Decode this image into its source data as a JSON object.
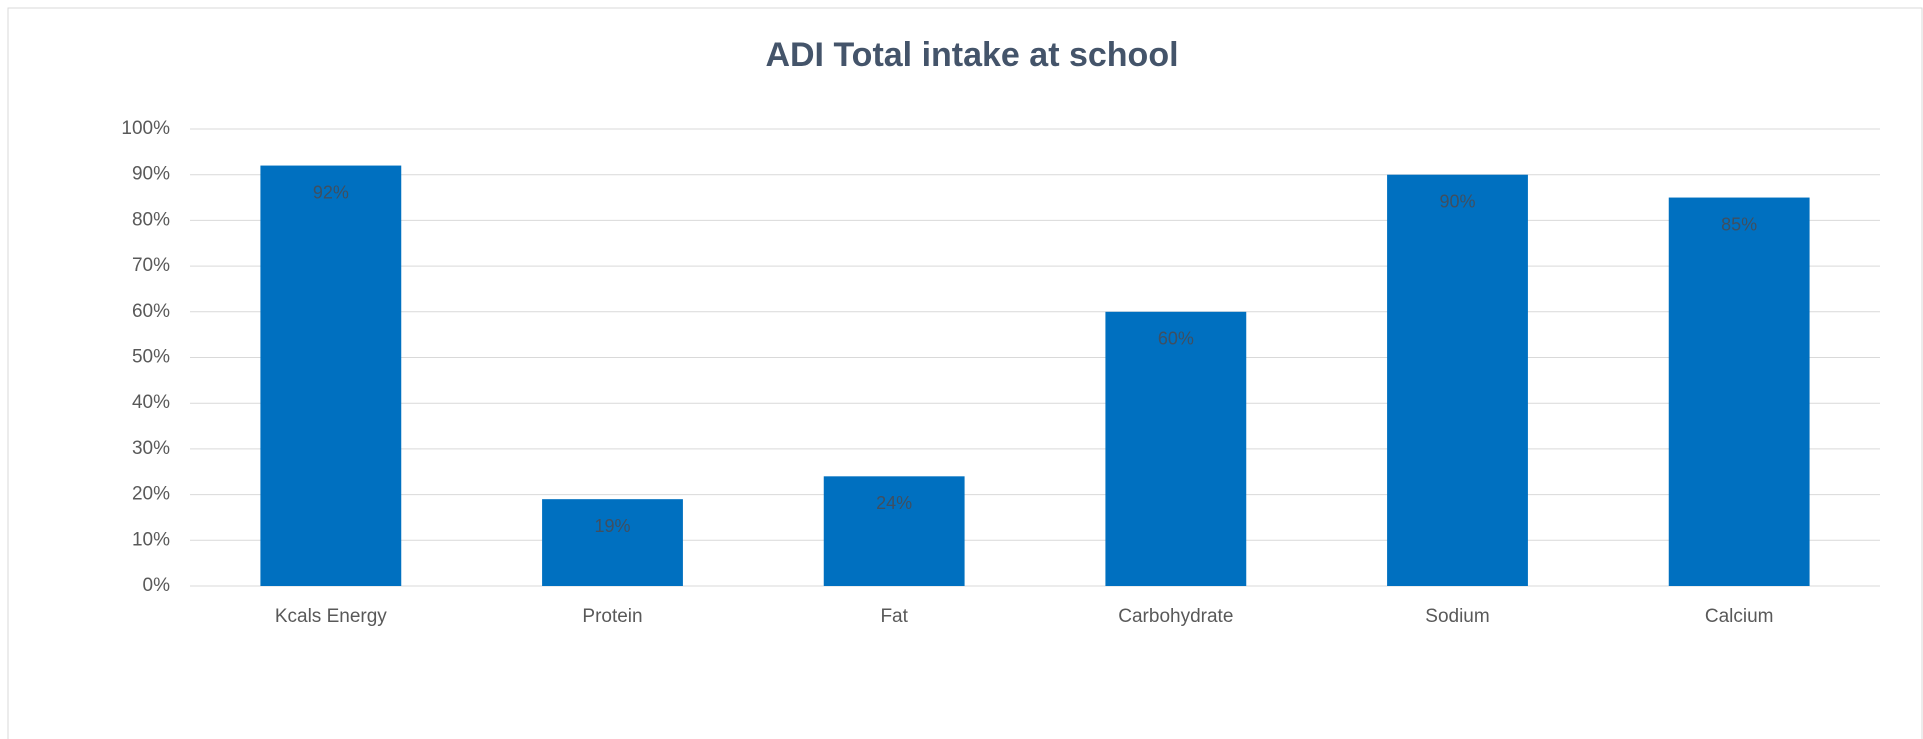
{
  "chart_data": {
    "type": "bar",
    "title": "ADI Total intake at school",
    "categories": [
      "Kcals Energy",
      "Protein",
      "Fat",
      "Carbohydrate",
      "Sodium",
      "Calcium"
    ],
    "values": [
      92,
      19,
      24,
      60,
      90,
      85
    ],
    "value_labels": [
      "92%",
      "19%",
      "24%",
      "60%",
      "90%",
      "85%"
    ],
    "color": "#0070c0",
    "ylim": [
      0,
      100
    ],
    "yticks": [
      {
        "value": 0,
        "label": "0%"
      },
      {
        "value": 10,
        "label": "10%"
      },
      {
        "value": 20,
        "label": "20%"
      },
      {
        "value": 30,
        "label": "30%"
      },
      {
        "value": 40,
        "label": "40%"
      },
      {
        "value": 50,
        "label": "50%"
      },
      {
        "value": 60,
        "label": "60%"
      },
      {
        "value": 70,
        "label": "70%"
      },
      {
        "value": 80,
        "label": "80%"
      },
      {
        "value": 90,
        "label": "90%"
      },
      {
        "value": 100,
        "label": "100%"
      }
    ],
    "grid": true
  }
}
